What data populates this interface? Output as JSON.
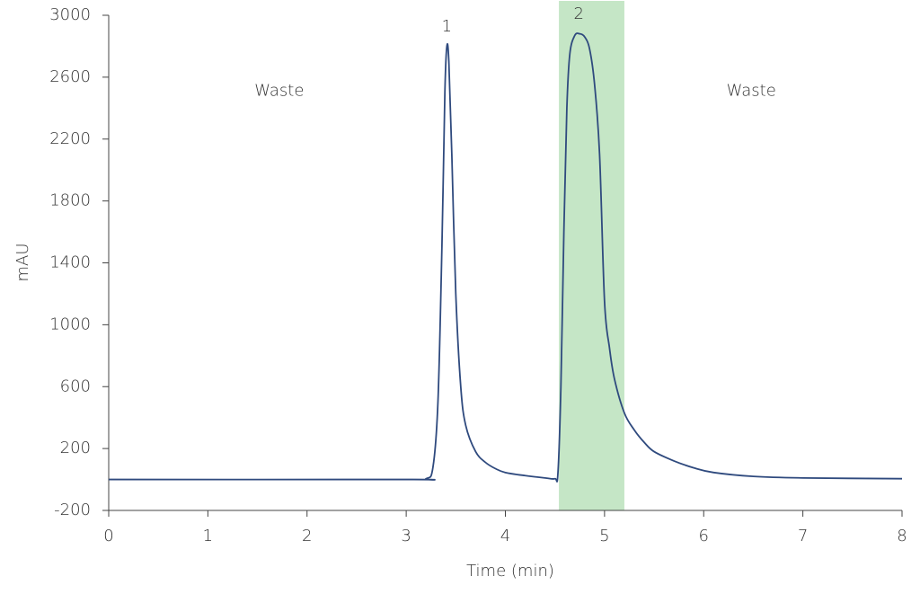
{
  "chart_data": {
    "type": "line",
    "x_label": "Time (min)",
    "y_label": "mAU",
    "x": [
      0,
      3.0,
      3.2,
      3.27,
      3.32,
      3.36,
      3.39,
      3.41,
      3.43,
      3.46,
      3.5,
      3.55,
      3.6,
      3.7,
      3.8,
      3.9,
      4.0,
      4.2,
      4.4,
      4.5,
      4.53,
      4.56,
      4.59,
      4.62,
      4.65,
      4.7,
      4.75,
      4.8,
      4.85,
      4.9,
      4.95,
      5.0,
      5.05,
      5.1,
      5.2,
      5.3,
      5.4,
      5.5,
      5.7,
      5.9,
      6.1,
      6.5,
      7,
      8
    ],
    "values": [
      0,
      0,
      5,
      80,
      500,
      1500,
      2500,
      2800,
      2700,
      2100,
      1200,
      600,
      350,
      180,
      110,
      70,
      45,
      25,
      10,
      5,
      40,
      600,
      1600,
      2400,
      2750,
      2870,
      2880,
      2860,
      2780,
      2550,
      2100,
      1150,
      850,
      650,
      430,
      320,
      240,
      180,
      120,
      75,
      45,
      20,
      10,
      5
    ],
    "color": "#2f4a7e",
    "highlight": [
      4.54,
      5.2
    ],
    "highlight_color": "#c5e6c6",
    "annotations": [
      {
        "text": "Waste",
        "x": 1.72,
        "y": 2510
      },
      {
        "text": "1",
        "x": 3.41,
        "y": 2925
      },
      {
        "text": "2",
        "x": 4.74,
        "y": 3005
      },
      {
        "text": "Waste",
        "x": 6.48,
        "y": 2510
      }
    ],
    "xlim": [
      0,
      8
    ],
    "xticks": [
      0,
      1,
      2,
      3,
      4,
      5,
      6,
      7,
      8
    ],
    "ylim": [
      -200,
      3000
    ],
    "yticks": [
      -200,
      200,
      600,
      1000,
      1400,
      1800,
      2200,
      2600,
      3000
    ]
  }
}
